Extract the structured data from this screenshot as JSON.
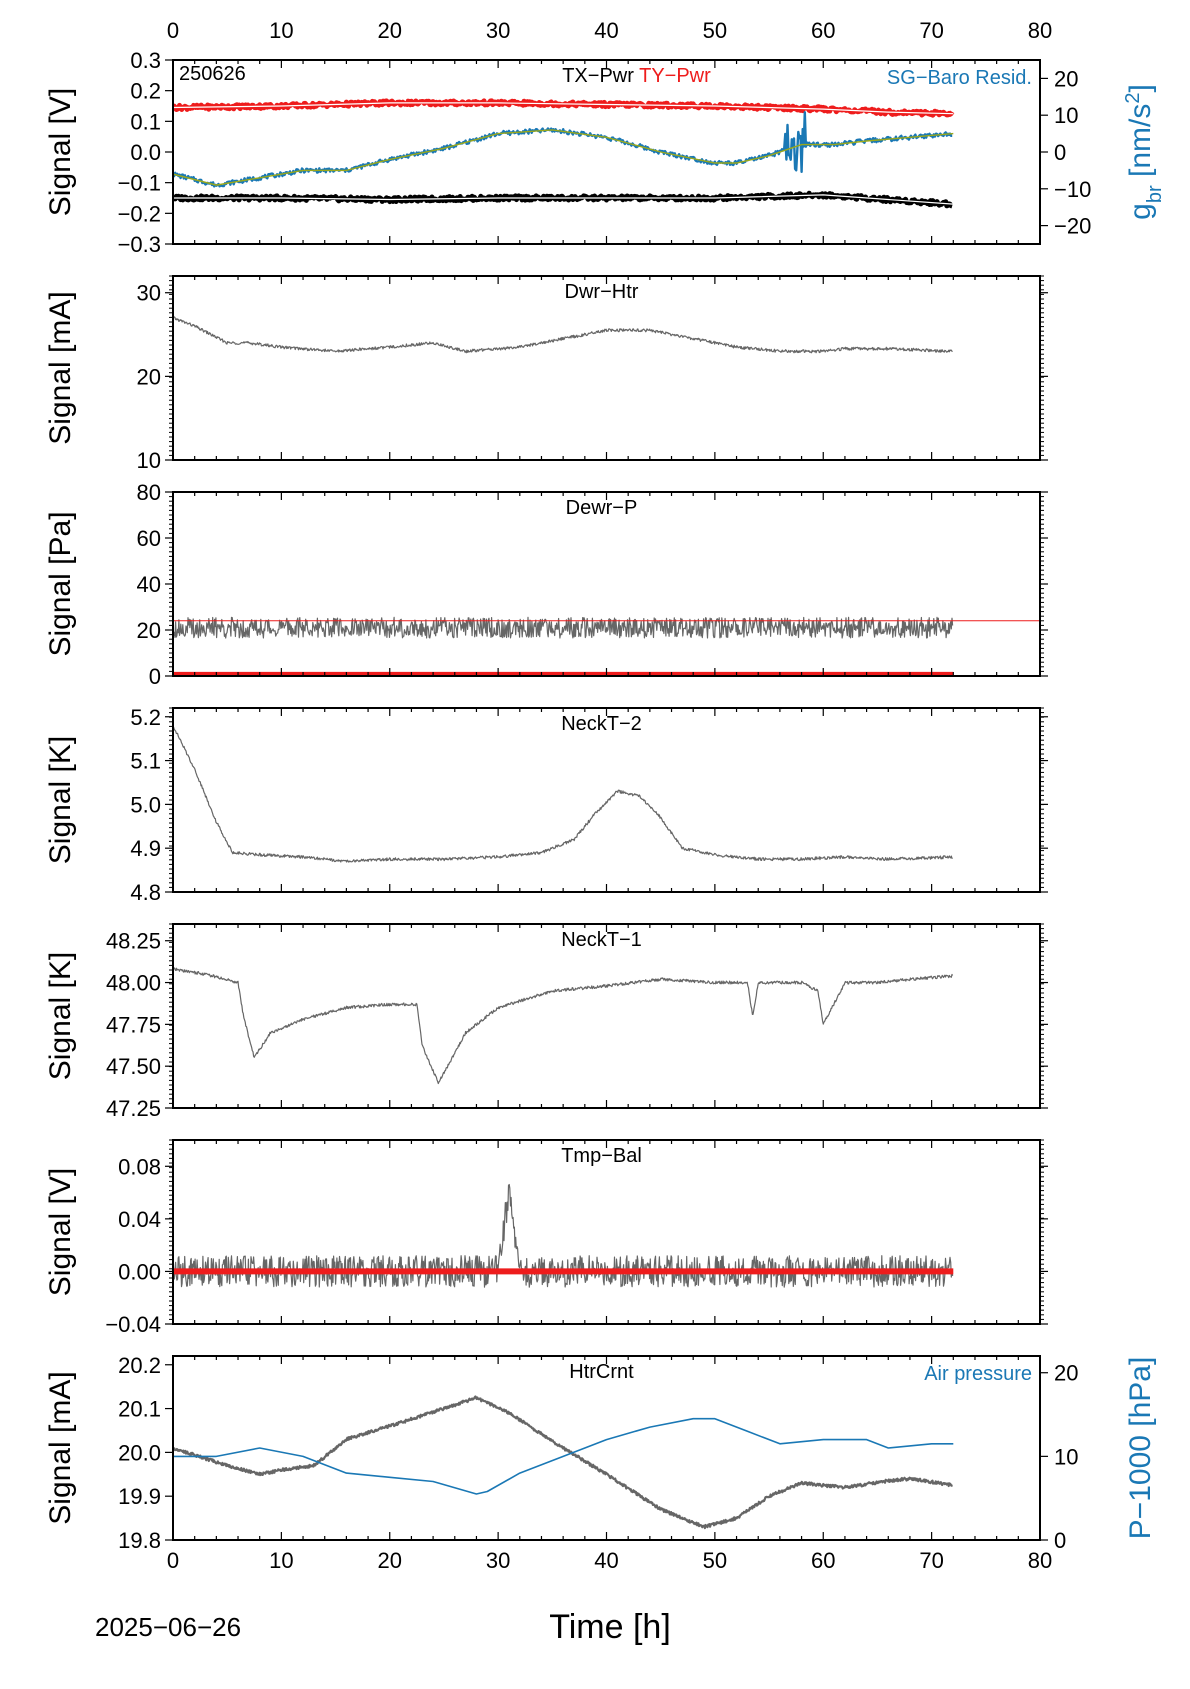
{
  "date_label": "2025−06−26",
  "xlabel": "Time [h]",
  "colors": {
    "black": "#000000",
    "gray": "#666666",
    "red": "#ee1c1c",
    "blue": "#1a78b5",
    "olive": "#9aa81a"
  },
  "chart_data": [
    {
      "type": "line",
      "station_label": "250626",
      "titles": [
        {
          "text": "TX−Pwr",
          "color": "#000000"
        },
        {
          "text": "TY−Pwr",
          "color": "#ee1c1c"
        }
      ],
      "right_title": {
        "text": "SG−Baro Resid.",
        "color": "#1a78b5"
      },
      "ylabel": "Signal [V]",
      "right_ylabel": "g_br [nm/s^2]",
      "xlim": [
        0,
        80
      ],
      "ylim": [
        -0.3,
        0.3
      ],
      "right_ylim": [
        -25,
        25
      ],
      "yticks": [
        -0.3,
        -0.2,
        -0.1,
        0.0,
        0.1,
        0.2,
        0.3
      ],
      "ytick_labels": [
        "−0.3",
        "−0.2",
        "−0.1",
        "0.0",
        "0.1",
        "0.2",
        "0.3"
      ],
      "right_yticks": [
        -20,
        -10,
        0,
        10,
        20
      ],
      "right_ytick_labels": [
        "−20",
        "−10",
        "0",
        "10",
        "20"
      ],
      "series": [
        {
          "name": "TX−Pwr",
          "color": "#000000",
          "x": [
            0,
            10,
            20,
            30,
            40,
            50,
            60,
            66,
            72
          ],
          "y": [
            -0.15,
            -0.15,
            -0.155,
            -0.15,
            -0.15,
            -0.15,
            -0.14,
            -0.155,
            -0.17
          ]
        },
        {
          "name": "TY−Pwr",
          "color": "#ee1c1c",
          "x": [
            0,
            10,
            20,
            30,
            40,
            50,
            60,
            66,
            72
          ],
          "y": [
            0.145,
            0.15,
            0.16,
            0.16,
            0.155,
            0.15,
            0.14,
            0.13,
            0.125
          ]
        },
        {
          "name": "SG−Baro Resid.",
          "color": "#1a78b5",
          "axis": "right",
          "x": [
            0,
            4,
            8,
            12,
            16,
            20,
            25,
            30,
            35,
            40,
            45,
            50,
            52,
            55,
            58,
            61,
            64,
            68,
            72
          ],
          "y": [
            -6,
            -9,
            -7,
            -5,
            -5,
            -2,
            1,
            5,
            6,
            4,
            0,
            -3,
            -3,
            -1,
            2,
            2,
            3,
            4,
            5
          ]
        }
      ]
    },
    {
      "type": "line",
      "titles": [
        {
          "text": "Dwr−Htr",
          "color": "#000000"
        }
      ],
      "ylabel": "Signal [mA]",
      "xlim": [
        0,
        80
      ],
      "ylim": [
        10,
        32
      ],
      "yticks": [
        10,
        20,
        30
      ],
      "ytick_labels": [
        "10",
        "20",
        "30"
      ],
      "series": [
        {
          "name": "Dwr−Htr",
          "color": "#666666",
          "x": [
            0,
            2,
            5,
            7,
            10,
            15,
            20,
            24,
            27,
            32,
            36,
            40,
            44,
            48,
            52,
            56,
            60,
            62,
            66,
            72
          ],
          "y": [
            27,
            26,
            24,
            24,
            23.5,
            23,
            23.5,
            24,
            23,
            23.5,
            24.5,
            25.5,
            25.5,
            24.5,
            23.5,
            23,
            23,
            23.3,
            23.3,
            23
          ]
        }
      ]
    },
    {
      "type": "line",
      "titles": [
        {
          "text": "Dewr−P",
          "color": "#000000"
        }
      ],
      "ylabel": "Signal [Pa]",
      "xlim": [
        0,
        80
      ],
      "ylim": [
        0,
        80
      ],
      "yticks": [
        0,
        20,
        40,
        60,
        80
      ],
      "ytick_labels": [
        "0",
        "20",
        "40",
        "60",
        "80"
      ],
      "series": [
        {
          "name": "Dewr−P",
          "color": "#666666",
          "x": [
            0,
            10,
            20,
            30,
            40,
            50,
            60,
            72
          ],
          "y": [
            21,
            21,
            21,
            21,
            21,
            21,
            21,
            21
          ]
        },
        {
          "name": "reference",
          "color": "#ee1c1c",
          "x": [
            0,
            80
          ],
          "y": [
            24,
            24
          ]
        },
        {
          "name": "flag",
          "color": "#ee1c1c",
          "x": [
            0,
            72
          ],
          "y": [
            0.5,
            0.5
          ]
        }
      ]
    },
    {
      "type": "line",
      "titles": [
        {
          "text": "NeckT−2",
          "color": "#000000"
        }
      ],
      "ylabel": "Signal [K]",
      "xlim": [
        0,
        80
      ],
      "ylim": [
        4.8,
        5.22
      ],
      "yticks": [
        4.8,
        4.9,
        5.0,
        5.1,
        5.2
      ],
      "ytick_labels": [
        "4.8",
        "4.9",
        "5.0",
        "5.1",
        "5.2"
      ],
      "series": [
        {
          "name": "NeckT−2",
          "color": "#666666",
          "x": [
            0,
            2,
            4,
            5.5,
            8,
            12,
            16,
            20,
            25,
            30,
            34,
            37,
            39,
            41,
            43,
            45,
            47,
            50,
            54,
            58,
            62,
            66,
            72
          ],
          "y": [
            5.18,
            5.08,
            4.96,
            4.89,
            4.885,
            4.88,
            4.87,
            4.875,
            4.875,
            4.88,
            4.89,
            4.92,
            4.98,
            5.03,
            5.02,
            4.97,
            4.9,
            4.885,
            4.875,
            4.875,
            4.88,
            4.875,
            4.88
          ]
        }
      ]
    },
    {
      "type": "line",
      "titles": [
        {
          "text": "NeckT−1",
          "color": "#000000"
        }
      ],
      "ylabel": "Signal [K]",
      "xlim": [
        0,
        80
      ],
      "ylim": [
        47.25,
        48.35
      ],
      "yticks": [
        47.25,
        47.5,
        47.75,
        48.0,
        48.25
      ],
      "ytick_labels": [
        "47.25",
        "47.50",
        "47.75",
        "48.00",
        "48.25"
      ],
      "series": [
        {
          "name": "NeckT−1",
          "color": "#666666",
          "x": [
            0,
            3,
            6,
            6.5,
            7.5,
            9,
            12,
            16,
            20,
            22.5,
            23,
            24.5,
            27,
            30,
            35,
            40,
            45,
            50,
            53,
            53.5,
            54,
            58,
            59.5,
            60,
            62,
            65,
            68,
            72
          ],
          "y": [
            48.08,
            48.05,
            48.0,
            47.8,
            47.55,
            47.7,
            47.78,
            47.85,
            47.87,
            47.87,
            47.62,
            47.4,
            47.7,
            47.85,
            47.95,
            47.98,
            48.02,
            48.0,
            48.0,
            47.8,
            48.0,
            48.0,
            47.95,
            47.75,
            48.0,
            48.0,
            48.02,
            48.04
          ]
        }
      ]
    },
    {
      "type": "line",
      "titles": [
        {
          "text": "Tmp−Bal",
          "color": "#000000"
        }
      ],
      "ylabel": "Signal [V]",
      "xlim": [
        0,
        80
      ],
      "ylim": [
        -0.04,
        0.1
      ],
      "yticks": [
        -0.04,
        0.0,
        0.04,
        0.08
      ],
      "ytick_labels": [
        "−0.04",
        "0.00",
        "0.04",
        "0.08"
      ],
      "series": [
        {
          "name": "Tmp−Bal",
          "color": "#666666",
          "x": [
            0,
            10,
            20,
            30,
            31,
            32,
            40,
            50,
            60,
            72
          ],
          "y": [
            0,
            0,
            0,
            0,
            0.062,
            0,
            0,
            0,
            0,
            0
          ]
        },
        {
          "name": "zero",
          "color": "#ee1c1c",
          "x": [
            0,
            72
          ],
          "y": [
            0,
            0
          ]
        }
      ]
    },
    {
      "type": "line",
      "titles": [
        {
          "text": "HtrCrnt",
          "color": "#000000"
        }
      ],
      "right_title": {
        "text": "Air pressure",
        "color": "#1a78b5"
      },
      "ylabel": "Signal [mA]",
      "right_ylabel": "P−1000 [hPa]",
      "xlim": [
        0,
        80
      ],
      "ylim": [
        19.8,
        20.22
      ],
      "right_ylim": [
        0,
        22
      ],
      "yticks": [
        19.8,
        19.9,
        20.0,
        20.1,
        20.2
      ],
      "ytick_labels": [
        "19.8",
        "19.9",
        "20.0",
        "20.1",
        "20.2"
      ],
      "right_yticks": [
        0,
        10,
        20
      ],
      "right_ytick_labels": [
        "0",
        "10",
        "20"
      ],
      "series": [
        {
          "name": "HtrCrnt",
          "color": "#666666",
          "x": [
            0,
            5,
            8,
            10,
            13,
            16,
            20,
            25,
            28,
            31,
            36,
            40,
            45,
            49,
            52,
            55,
            58,
            62,
            66,
            68,
            72
          ],
          "y": [
            20.01,
            19.97,
            19.95,
            19.96,
            19.97,
            20.03,
            20.06,
            20.1,
            20.125,
            20.09,
            20.01,
            19.95,
            19.87,
            19.83,
            19.85,
            19.9,
            19.93,
            19.92,
            19.935,
            19.94,
            19.925
          ]
        },
        {
          "name": "Air pressure",
          "color": "#1a78b5",
          "axis": "right",
          "x": [
            0,
            4,
            8,
            12,
            16,
            20,
            24,
            28,
            29,
            32,
            36,
            40,
            44,
            48,
            50,
            53,
            56,
            60,
            64,
            66,
            70,
            72
          ],
          "y": [
            10,
            10,
            11,
            10,
            8,
            7.5,
            7,
            5.5,
            5.8,
            8,
            10,
            12,
            13.5,
            14.5,
            14.5,
            13,
            11.5,
            12,
            12,
            11,
            11.5,
            11.5
          ]
        }
      ]
    }
  ]
}
